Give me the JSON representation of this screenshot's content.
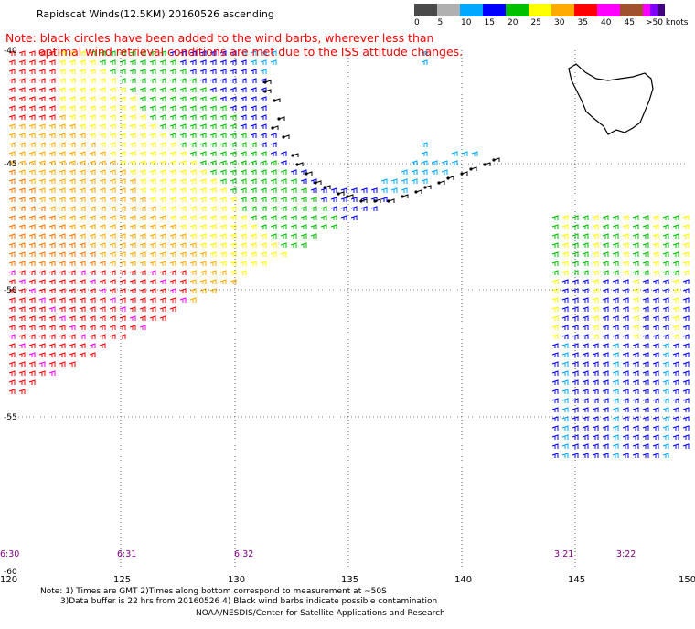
{
  "title": "Rapidscat Winds(12.5KM) 20160526 ascending",
  "note_line1": "Note: black circles have been added to the wind barbs, wherever less than",
  "note_line2": "optimal wind retrieval conditions are met due to the ISS attitude changes.",
  "speed_scale": {
    "unit_label": ">50 knots",
    "labels": [
      "0",
      "5",
      "10",
      "15",
      "20",
      "25",
      "30",
      "35",
      "40",
      "45"
    ],
    "colors": [
      "#4a4a4a",
      "#b0b0b0",
      "#00a8ff",
      "#0000ff",
      "#00c000",
      "#ffff00",
      "#ffaa00",
      "#ff0000",
      "#ff00ff",
      "#a0522d",
      "#ff00ff",
      "#8000ff",
      "#400080"
    ]
  },
  "lat_labels": [
    "-40",
    "-45",
    "-50",
    "-55",
    "-60"
  ],
  "lon_labels": [
    "120",
    "125",
    "130",
    "135",
    "140",
    "145",
    "150"
  ],
  "time_labels": [
    "6:30",
    "6:31",
    "6:32",
    "3:21",
    "3:22"
  ],
  "footer": {
    "line1": "Note: 1) Times are GMT 2)Times along bottom correspond to measurement at ~50S",
    "line2": "3)Data buffer is 22 hrs from 20160526 4) Black wind barbs indicate possible contamination",
    "line3": "NOAA/NESDIS/Center for Satellite Applications and Research"
  },
  "map": {
    "lon_range": [
      120,
      150
    ],
    "lat_range": [
      -40,
      -60
    ],
    "grid": true,
    "swaths": [
      {
        "region": "left swath",
        "dominant_speeds_knots": "5-40"
      },
      {
        "region": "right swath",
        "dominant_speeds_knots": "5-25"
      }
    ],
    "coastline": "Tasmania"
  }
}
